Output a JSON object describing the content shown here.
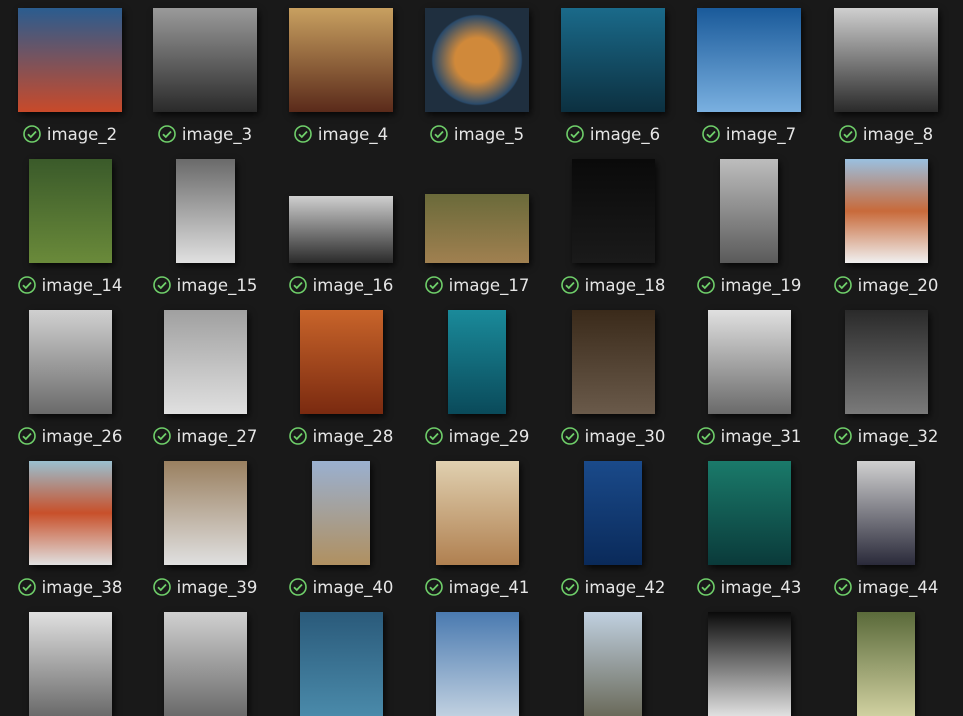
{
  "rows": [
    [
      "image_2",
      "image_3",
      "image_4",
      "image_5",
      "image_6",
      "image_7",
      "image_8"
    ],
    [
      "image_14",
      "image_15",
      "image_16",
      "image_17",
      "image_18",
      "image_19",
      "image_20"
    ],
    [
      "image_26",
      "image_27",
      "image_28",
      "image_29",
      "image_30",
      "image_31",
      "image_32"
    ],
    [
      "image_38",
      "image_39",
      "image_40",
      "image_41",
      "image_42",
      "image_43",
      "image_44"
    ]
  ]
}
